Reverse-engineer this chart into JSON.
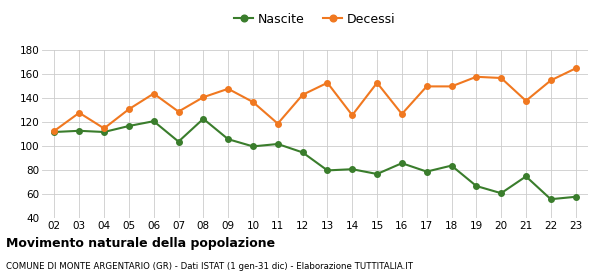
{
  "years": [
    "02",
    "03",
    "04",
    "05",
    "06",
    "07",
    "08",
    "09",
    "10",
    "11",
    "12",
    "13",
    "14",
    "15",
    "16",
    "17",
    "18",
    "19",
    "20",
    "21",
    "22",
    "23"
  ],
  "nascite": [
    112,
    113,
    112,
    117,
    121,
    104,
    123,
    106,
    100,
    102,
    95,
    80,
    81,
    77,
    86,
    79,
    84,
    67,
    61,
    75,
    56,
    58
  ],
  "decessi": [
    113,
    128,
    115,
    131,
    144,
    129,
    141,
    148,
    137,
    119,
    143,
    153,
    126,
    153,
    127,
    150,
    150,
    158,
    157,
    138,
    155,
    165
  ],
  "nascite_color": "#3a7d2c",
  "decessi_color": "#f07820",
  "ylim": [
    40,
    180
  ],
  "yticks": [
    40,
    60,
    80,
    100,
    120,
    140,
    160,
    180
  ],
  "title": "Movimento naturale della popolazione",
  "subtitle": "COMUNE DI MONTE ARGENTARIO (GR) - Dati ISTAT (1 gen-31 dic) - Elaborazione TUTTITALIA.IT",
  "legend_nascite": "Nascite",
  "legend_decessi": "Decessi",
  "bg_color": "#ffffff",
  "grid_color": "#cccccc",
  "marker_size": 4,
  "line_width": 1.5
}
